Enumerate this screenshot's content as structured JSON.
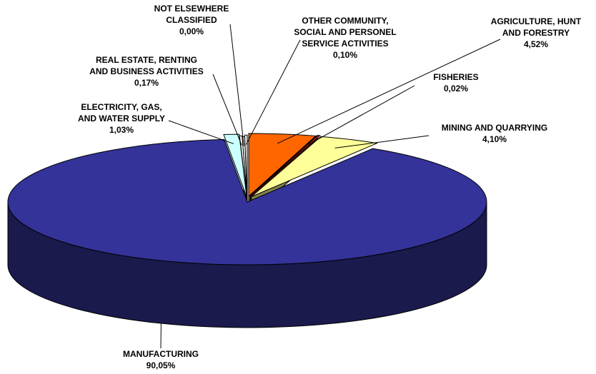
{
  "chart_data": {
    "type": "pie",
    "style": "3d-exploded",
    "legend": "none",
    "slices": [
      {
        "label_lines": [
          "AGRICULTURE, HUNT",
          "AND FORESTRY"
        ],
        "value_text": "4,52%",
        "value": 4.52,
        "color": "#FF6600"
      },
      {
        "label_lines": [
          "FISHERIES"
        ],
        "value_text": "0,02%",
        "value": 0.02,
        "color": "#C02020"
      },
      {
        "label_lines": [
          "MINING AND QUARRYING"
        ],
        "value_text": "4,10%",
        "value": 4.1,
        "color": "#FFFF99"
      },
      {
        "label_lines": [
          "MANUFACTURING"
        ],
        "value_text": "90,05%",
        "value": 90.05,
        "color": "#333399"
      },
      {
        "label_lines": [
          "ELECTRICITY, GAS,",
          "AND WATER SUPPLY"
        ],
        "value_text": "1,03%",
        "value": 1.03,
        "color": "#CCFFFF"
      },
      {
        "label_lines": [
          "REAL ESTATE, RENTING",
          "AND BUSINESS ACTIVITIES"
        ],
        "value_text": "0,17%",
        "value": 0.17,
        "color": "#FFFFFF"
      },
      {
        "label_lines": [
          "NOT ELSEWHERE",
          "CLASSIFIED"
        ],
        "value_text": "0,00%",
        "value": 0.0,
        "color": "#FFFFFF"
      },
      {
        "label_lines": [
          "OTHER COMMUNITY,",
          "SOCIAL AND PERSONEL",
          "SERVICE ACTIVITIES"
        ],
        "value_text": "0,10%",
        "value": 0.1,
        "color": "#FFFFFF"
      }
    ]
  }
}
